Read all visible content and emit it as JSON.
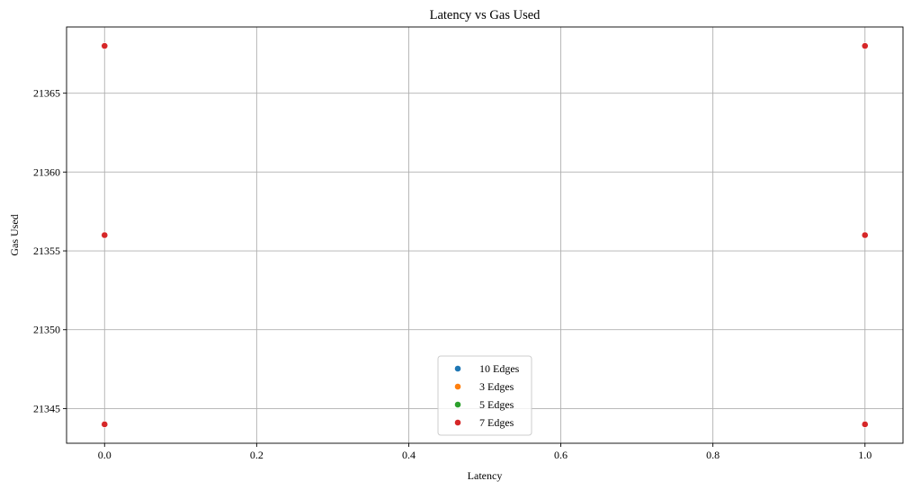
{
  "chart_data": {
    "type": "scatter",
    "title": "Latency vs Gas Used",
    "xlabel": "Latency",
    "ylabel": "Gas Used",
    "xlim": [
      -0.05,
      1.05
    ],
    "ylim": [
      21342.8,
      21369.2
    ],
    "xticks": [
      0.0,
      0.2,
      0.4,
      0.6,
      0.8,
      1.0
    ],
    "xtick_labels": [
      "0.0",
      "0.2",
      "0.4",
      "0.6",
      "0.8",
      "1.0"
    ],
    "yticks": [
      21345,
      21350,
      21355,
      21360,
      21365
    ],
    "ytick_labels": [
      "21345",
      "21350",
      "21355",
      "21360",
      "21365"
    ],
    "grid": true,
    "legend_position": "bottom-center",
    "series": [
      {
        "name": "10 Edges",
        "color": "#1f77b4",
        "points": [
          [
            0,
            21344
          ],
          [
            0,
            21356
          ],
          [
            0,
            21368
          ],
          [
            1,
            21344
          ],
          [
            1,
            21356
          ],
          [
            1,
            21368
          ]
        ]
      },
      {
        "name": "3 Edges",
        "color": "#ff7f0e",
        "points": [
          [
            0,
            21344
          ],
          [
            0,
            21356
          ],
          [
            0,
            21368
          ],
          [
            1,
            21344
          ],
          [
            1,
            21356
          ],
          [
            1,
            21368
          ]
        ]
      },
      {
        "name": "5 Edges",
        "color": "#2ca02c",
        "points": [
          [
            0,
            21344
          ],
          [
            0,
            21356
          ],
          [
            0,
            21368
          ],
          [
            1,
            21344
          ],
          [
            1,
            21356
          ],
          [
            1,
            21368
          ]
        ]
      },
      {
        "name": "7 Edges",
        "color": "#d62728",
        "points": [
          [
            0,
            21344
          ],
          [
            0,
            21356
          ],
          [
            0,
            21368
          ],
          [
            1,
            21344
          ],
          [
            1,
            21356
          ],
          [
            1,
            21368
          ]
        ]
      }
    ]
  }
}
